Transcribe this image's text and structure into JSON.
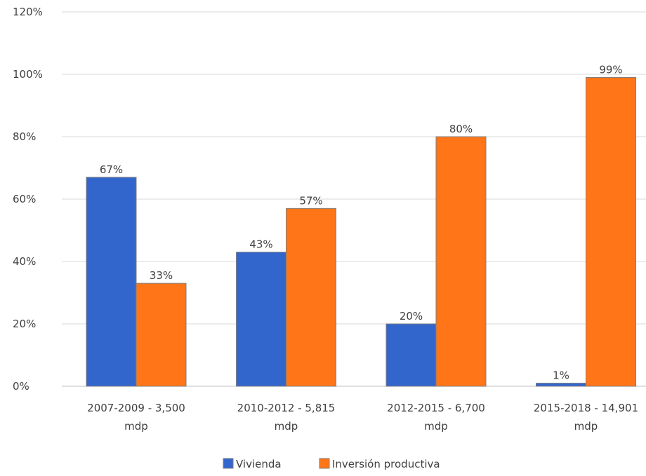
{
  "chart_data": {
    "type": "bar",
    "categories": [
      [
        "2007-2009 - 3,500",
        "mdp"
      ],
      [
        "2010-2012 - 5,815",
        "mdp"
      ],
      [
        "2012-2015 - 6,700",
        "mdp"
      ],
      [
        "2015-2018 - 14,901",
        "mdp"
      ]
    ],
    "series": [
      {
        "name": "Vivienda",
        "values": [
          67,
          43,
          20,
          1
        ],
        "labels": [
          "67%",
          "43%",
          "20%",
          "1%"
        ],
        "color": "#3366CC"
      },
      {
        "name": "Inversión productiva",
        "values": [
          33,
          57,
          80,
          99
        ],
        "labels": [
          "33%",
          "57%",
          "80%",
          "99%"
        ],
        "color": "#FF7518"
      }
    ],
    "y_ticks": [
      "0%",
      "20%",
      "40%",
      "60%",
      "80%",
      "100%",
      "120%"
    ],
    "ylim": [
      0,
      120
    ],
    "grid": true,
    "legend_position": "bottom",
    "title": "",
    "xlabel": "",
    "ylabel": ""
  }
}
